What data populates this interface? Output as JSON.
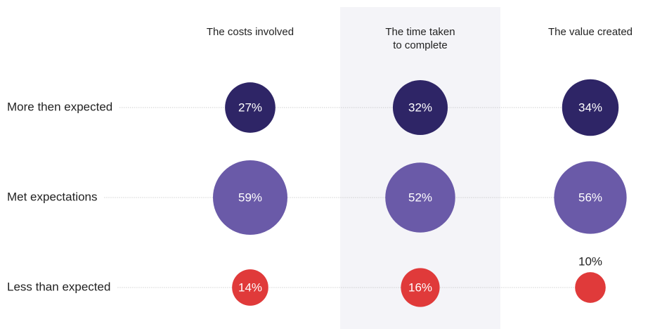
{
  "chart_data": {
    "type": "bubble-matrix",
    "categories": [
      "The costs involved",
      "The time taken\nto complete",
      "The value created"
    ],
    "series": [
      {
        "name": "More then expected",
        "color": "#2e2566",
        "values": [
          27,
          32,
          34
        ],
        "value_labels": [
          "27%",
          "32%",
          "34%"
        ]
      },
      {
        "name": "Met expectations",
        "color": "#6a5aa8",
        "values": [
          59,
          52,
          56
        ],
        "value_labels": [
          "59%",
          "52%",
          "56%"
        ]
      },
      {
        "name": "Less than expected",
        "color": "#e03a3a",
        "values": [
          14,
          16,
          10
        ],
        "value_labels": [
          "14%",
          "16%",
          "10%"
        ]
      }
    ],
    "highlight_column": 1,
    "highlight_color": "#f4f4f8"
  }
}
